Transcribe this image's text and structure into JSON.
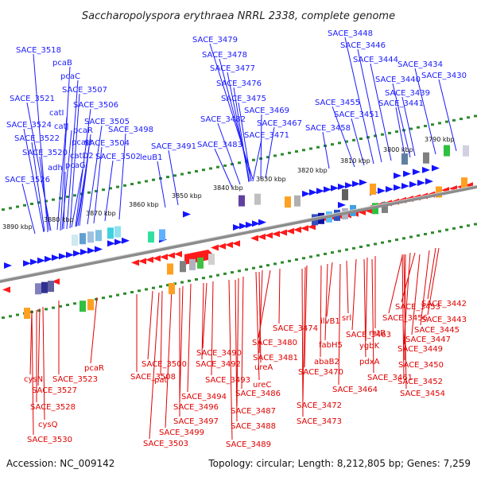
{
  "title": "Saccharopolyspora erythraea NRRL 2338, complete genome",
  "accession": "Accession: NC_009142",
  "topology": "Topology: circular; Length: 8,212,805 bp; Genes: 7,259",
  "colors": {
    "forward_label": "#1a1aff",
    "reverse_label": "#e00000",
    "backbone": "#8c8c8c",
    "scale_dots": "#2e8b2e"
  },
  "scale_ticks": [
    "3890 kbp",
    "3880 kbp",
    "3870 kbp",
    "3860 kbp",
    "3850 kbp",
    "3840 kbp",
    "3830 kbp",
    "3820 kbp",
    "3810 kbp",
    "3800 kbp",
    "3790 kbp"
  ],
  "forward_genes": [
    "SACE_3518",
    "pcaB",
    "pcaC",
    "SACE_3507",
    "SACE_3521",
    "SACE_3506",
    "catI",
    "SACE_3524",
    "catJ",
    "pcaR",
    "SACE_3505",
    "SACE_3498",
    "SACE_3522",
    "pcaH",
    "SACE_3504",
    "SACE_3520",
    "catD2",
    "SACE_3502",
    "adh",
    "pcaG",
    "SACE_3526",
    "SACE_3491",
    "leuB1",
    "SACE_3479",
    "SACE_3478",
    "SACE_3477",
    "SACE_3476",
    "SACE_3475",
    "SACE_3482",
    "SACE_3469",
    "SACE_3467",
    "SACE_3471",
    "SACE_3483",
    "SACE_3448",
    "SACE_3446",
    "SACE_3444",
    "SACE_3434",
    "SACE_3440",
    "SACE_3430",
    "SACE_3439",
    "SACE_3455",
    "SACE_3441",
    "SACE_3451",
    "SACE_3458"
  ],
  "reverse_genes": [
    "SACE_3442",
    "SACE_3453",
    "SACE_3443",
    "SACE_3456",
    "SACE_3445",
    "SACE_3447",
    "SACE_3474",
    "ilvB1",
    "srl",
    "rhtB",
    "SACE_3463",
    "SACE_3449",
    "SACE_3480",
    "fabH5",
    "ygbK",
    "SACE_3490",
    "SACE_3481",
    "abaB2",
    "pdxA",
    "SACE_3450",
    "SACE_3492",
    "ureA",
    "SACE_3470",
    "SACE_3461",
    "SACE_3493",
    "ureC",
    "SACE_3464",
    "SACE_3452",
    "SACE_3486",
    "SACE_3454",
    "SACE_3494",
    "SACE_3496",
    "SACE_3487",
    "SACE_3472",
    "SACE_3497",
    "SACE_3488",
    "SACE_3473",
    "SACE_3499",
    "SACE_3503",
    "SACE_3489",
    "SACE_3500",
    "pcaR",
    "SACE_3508",
    "pat",
    "SACE_3523",
    "cysN",
    "SACE_3527",
    "SACE_3528",
    "cysQ",
    "SACE_3530"
  ]
}
